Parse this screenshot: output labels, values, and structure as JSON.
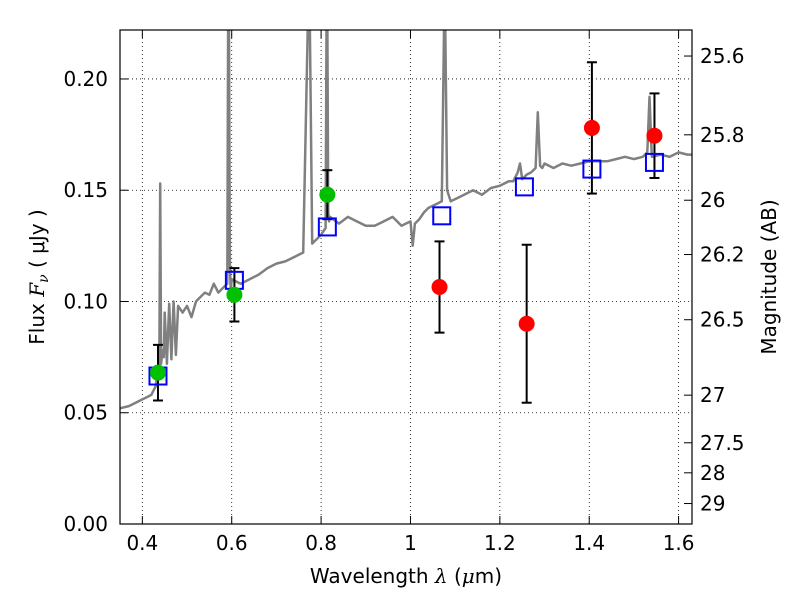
{
  "chart_data": {
    "type": "scatter",
    "xlabel_prefix": "Wavelength ",
    "xlabel_symbol": "λ",
    "xlabel_unit_open": " (",
    "xlabel_unit_mu": "μ",
    "xlabel_unit_rest": "m)",
    "ylabel_prefix": "Flux  ",
    "ylabel_symbol_F": "F",
    "ylabel_symbol_sub": "ν",
    "ylabel_unit": " ( μJy )",
    "y2label": "Magnitude (AB)",
    "xlim": [
      0.35,
      1.63
    ],
    "ylim": [
      0.0,
      0.222
    ],
    "grid": true,
    "x_ticks": [
      0.4,
      0.6,
      0.8,
      1.0,
      1.2,
      1.4,
      1.6
    ],
    "x_tick_labels": [
      "0.4",
      "0.6",
      "0.8",
      "1",
      "1.2",
      "1.4",
      "1.6"
    ],
    "y_ticks": [
      0.0,
      0.05,
      0.1,
      0.15,
      0.2
    ],
    "y_tick_labels": [
      "0.00",
      "0.05",
      "0.10",
      "0.15",
      "0.20"
    ],
    "magnitude_ticks": [
      {
        "label": "25.6",
        "flux": 0.2103
      },
      {
        "label": "25.8",
        "flux": 0.1749
      },
      {
        "label": "26",
        "flux": 0.1455
      },
      {
        "label": "26.2",
        "flux": 0.1211
      },
      {
        "label": "26.5",
        "flux": 0.0918
      },
      {
        "label": "27",
        "flux": 0.0579
      },
      {
        "label": "27.5",
        "flux": 0.0365
      },
      {
        "label": "28",
        "flux": 0.023
      },
      {
        "label": "29",
        "flux": 0.0092
      }
    ],
    "series": [
      {
        "role": "model_spectrum",
        "style": "line",
        "color": "#808080",
        "x": [
          0.35,
          0.37,
          0.39,
          0.4,
          0.41,
          0.42,
          0.425,
          0.43,
          0.435,
          0.438,
          0.44,
          0.442,
          0.445,
          0.448,
          0.45,
          0.455,
          0.46,
          0.465,
          0.47,
          0.475,
          0.48,
          0.49,
          0.5,
          0.51,
          0.52,
          0.53,
          0.54,
          0.55,
          0.56,
          0.57,
          0.58,
          0.59,
          0.592,
          0.594,
          0.596,
          0.598,
          0.6,
          0.62,
          0.64,
          0.66,
          0.68,
          0.7,
          0.72,
          0.74,
          0.76,
          0.77,
          0.775,
          0.78,
          0.785,
          0.79,
          0.8,
          0.81,
          0.812,
          0.814,
          0.816,
          0.818,
          0.82,
          0.84,
          0.86,
          0.88,
          0.9,
          0.92,
          0.94,
          0.96,
          0.98,
          1.0,
          1.005,
          1.01,
          1.02,
          1.03,
          1.04,
          1.05,
          1.06,
          1.07,
          1.075,
          1.078,
          1.082,
          1.09,
          1.1,
          1.12,
          1.14,
          1.16,
          1.18,
          1.2,
          1.22,
          1.23,
          1.24,
          1.245,
          1.25,
          1.26,
          1.27,
          1.28,
          1.285,
          1.29,
          1.295,
          1.3,
          1.32,
          1.34,
          1.36,
          1.38,
          1.4,
          1.42,
          1.44,
          1.46,
          1.48,
          1.5,
          1.52,
          1.53,
          1.535,
          1.54,
          1.56,
          1.58,
          1.6,
          1.62,
          1.63
        ],
        "y": [
          0.052,
          0.053,
          0.055,
          0.056,
          0.057,
          0.058,
          0.06,
          0.062,
          0.07,
          0.068,
          0.153,
          0.072,
          0.078,
          0.075,
          0.095,
          0.072,
          0.099,
          0.074,
          0.1,
          0.076,
          0.098,
          0.095,
          0.098,
          0.093,
          0.1,
          0.102,
          0.104,
          0.103,
          0.108,
          0.104,
          0.106,
          0.108,
          0.222,
          0.222,
          0.115,
          0.105,
          0.11,
          0.108,
          0.11,
          0.112,
          0.115,
          0.117,
          0.118,
          0.12,
          0.122,
          0.222,
          0.222,
          0.126,
          0.127,
          0.128,
          0.13,
          0.133,
          0.222,
          0.222,
          0.14,
          0.136,
          0.138,
          0.135,
          0.138,
          0.136,
          0.134,
          0.134,
          0.136,
          0.138,
          0.134,
          0.136,
          0.125,
          0.135,
          0.137,
          0.14,
          0.142,
          0.143,
          0.144,
          0.145,
          0.222,
          0.222,
          0.15,
          0.145,
          0.146,
          0.148,
          0.15,
          0.148,
          0.151,
          0.152,
          0.154,
          0.154,
          0.158,
          0.162,
          0.155,
          0.157,
          0.158,
          0.16,
          0.185,
          0.161,
          0.16,
          0.162,
          0.16,
          0.162,
          0.161,
          0.162,
          0.163,
          0.163,
          0.163,
          0.164,
          0.165,
          0.164,
          0.165,
          0.167,
          0.192,
          0.165,
          0.166,
          0.165,
          0.167,
          0.166,
          0.166
        ]
      },
      {
        "role": "model_photometry",
        "style": "open_square",
        "color": "#0000ff",
        "x": [
          0.435,
          0.606,
          0.814,
          1.07,
          1.255,
          1.406,
          1.546
        ],
        "y": [
          0.0665,
          0.1095,
          0.1335,
          0.1385,
          0.1515,
          0.1595,
          0.1625
        ]
      },
      {
        "role": "observed_optical",
        "style": "filled_circle",
        "color": "#00c000",
        "x": [
          0.435,
          0.606,
          0.814
        ],
        "y": [
          0.068,
          0.103,
          0.148
        ],
        "yerr": [
          0.0125,
          0.012,
          0.011
        ]
      },
      {
        "role": "observed_nir",
        "style": "filled_circle",
        "color": "#ff0000",
        "x": [
          1.065,
          1.26,
          1.406,
          1.546
        ],
        "y": [
          0.1065,
          0.09,
          0.178,
          0.1745
        ],
        "yerr": [
          0.0205,
          0.0355,
          0.0295,
          0.019
        ]
      }
    ]
  }
}
